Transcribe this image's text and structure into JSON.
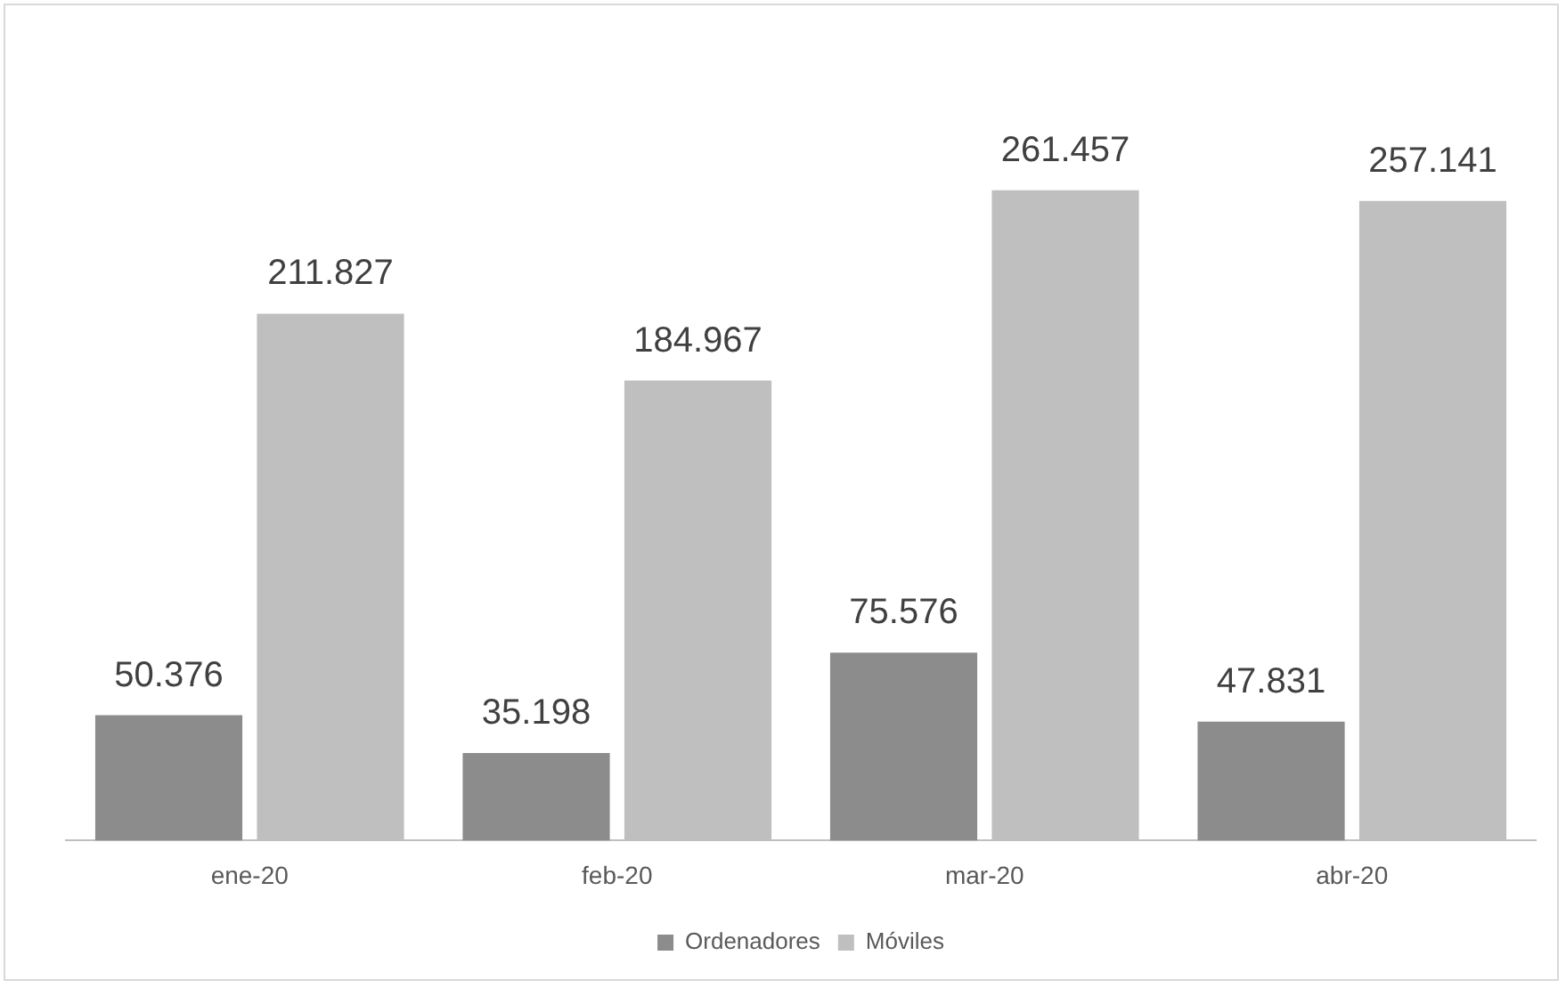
{
  "chart_data": {
    "type": "bar",
    "categories": [
      "ene-20",
      "feb-20",
      "mar-20",
      "abr-20"
    ],
    "series": [
      {
        "name": "Ordenadores",
        "color": "#8c8c8c",
        "values": [
          50376,
          35198,
          75576,
          47831
        ],
        "value_labels": [
          "50.376",
          "35.198",
          "75.576",
          "47.831"
        ]
      },
      {
        "name": "Móviles",
        "color": "#bfbfbf",
        "values": [
          211827,
          184967,
          261457,
          257141
        ],
        "value_labels": [
          "211.827",
          "184.967",
          "261.457",
          "257.141"
        ]
      }
    ],
    "legend": "bottom",
    "grid": false,
    "tick_labels": "x"
  }
}
